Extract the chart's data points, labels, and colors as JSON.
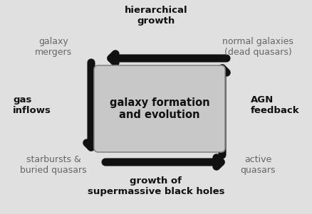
{
  "bg_color": "#e0e0e0",
  "box_color": "#c8c8c8",
  "box_edge_color": "#888888",
  "arrow_color": "#111111",
  "text_color": "#666666",
  "bold_text_color": "#111111",
  "center_text": "galaxy formation\nand evolution",
  "top_label": "hierarchical\ngrowth",
  "left_label": "gas\ninflows",
  "bottom_label": "growth of\nsupermassive black holes",
  "right_label": "AGN\nfeedback",
  "tl_label": "galaxy\nmergers",
  "tr_label": "normal galaxies\n(dead quasars)",
  "bl_label": "starbursts &\nburied quasars",
  "br_label": "active\nquasars",
  "figsize": [
    4.38,
    3.01
  ],
  "dpi": 100
}
